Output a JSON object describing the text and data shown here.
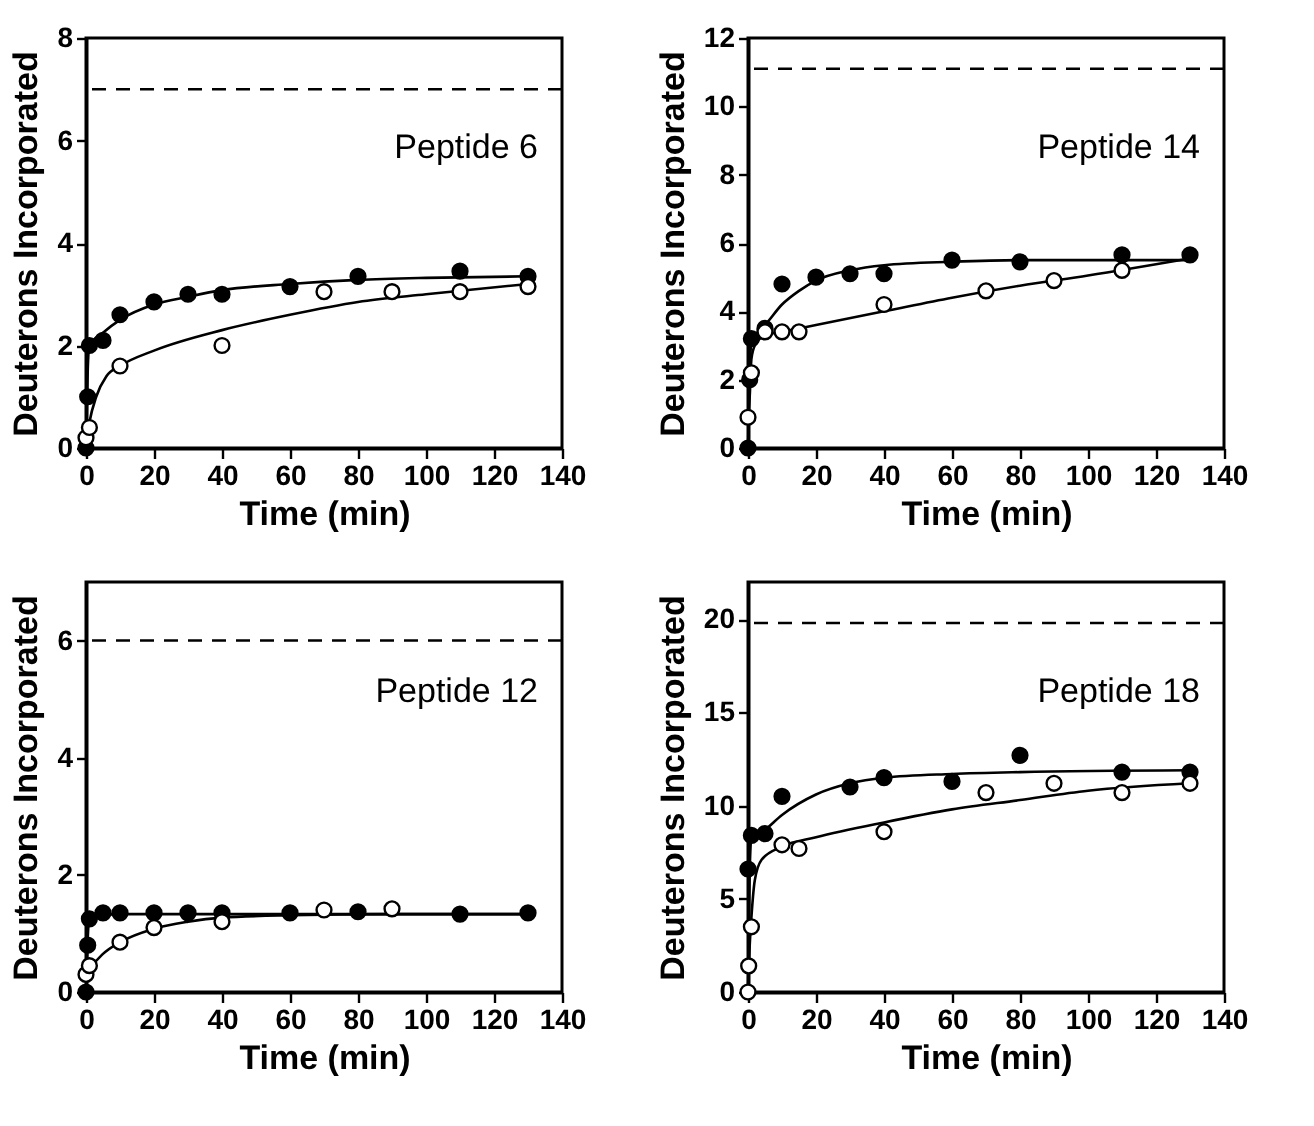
{
  "chart_data": [
    {
      "type": "scatter",
      "marker": "circle",
      "grid": false,
      "xlabel": "Time (min)",
      "ylabel": "Deuterons Incorporated",
      "annotations": [
        "Peptide 6"
      ],
      "xlim": [
        0,
        140
      ],
      "xticks": [
        0,
        20,
        40,
        60,
        80,
        100,
        120,
        140
      ],
      "ylim": [
        0,
        8
      ],
      "yticks": [
        0,
        2,
        4,
        6,
        8
      ],
      "ref_lines": [
        {
          "axis": "y",
          "value": 7,
          "line_style": "dashed",
          "color": "#000000"
        }
      ],
      "series": [
        {
          "type": "line",
          "color": "#000000",
          "marker": "none",
          "x": [
            0,
            0.5,
            1,
            5,
            10,
            20,
            30,
            40,
            60,
            80,
            100,
            130
          ],
          "values": [
            0,
            1.5,
            2.0,
            2.25,
            2.5,
            2.8,
            2.95,
            3.08,
            3.2,
            3.28,
            3.32,
            3.35
          ]
        },
        {
          "type": "line",
          "color": "#000000",
          "marker": "none",
          "x": [
            0,
            0.5,
            1,
            3,
            6,
            10,
            20,
            40,
            60,
            80,
            100,
            130
          ],
          "values": [
            0,
            0.3,
            0.5,
            1.0,
            1.4,
            1.6,
            1.9,
            2.3,
            2.6,
            2.85,
            3.0,
            3.2
          ]
        },
        {
          "color": "#000000",
          "x": [
            0,
            0.5,
            1,
            5,
            10,
            20,
            30,
            40,
            60,
            80,
            110,
            130
          ],
          "values": [
            0,
            1.0,
            2.0,
            2.1,
            2.6,
            2.85,
            3.0,
            3.0,
            3.15,
            3.35,
            3.45,
            3.35
          ]
        },
        {
          "color": "#ffffff",
          "x": [
            0,
            1,
            10,
            40,
            70,
            90,
            110,
            130
          ],
          "values": [
            0.2,
            0.4,
            1.6,
            2.0,
            3.05,
            3.05,
            3.05,
            3.15
          ]
        }
      ]
    },
    {
      "type": "scatter",
      "marker": "circle",
      "grid": false,
      "xlabel": "Time (min)",
      "ylabel": "Deuterons Incorporated",
      "annotations": [
        "Peptide 14"
      ],
      "xlim": [
        0,
        140
      ],
      "xticks": [
        0,
        20,
        40,
        60,
        80,
        100,
        120,
        140
      ],
      "ylim": [
        0,
        12
      ],
      "yticks": [
        0,
        2,
        4,
        6,
        8,
        10,
        12
      ],
      "ref_lines": [
        {
          "axis": "y",
          "value": 11.1,
          "line_style": "dashed",
          "color": "#000000"
        }
      ],
      "series": [
        {
          "type": "line",
          "color": "#000000",
          "marker": "none",
          "x": [
            0,
            0.5,
            1,
            3,
            5,
            10,
            15,
            20,
            30,
            40,
            60,
            80,
            130
          ],
          "values": [
            0,
            2.2,
            3.1,
            3.4,
            3.6,
            4.2,
            4.6,
            4.9,
            5.2,
            5.35,
            5.45,
            5.5,
            5.5
          ]
        },
        {
          "type": "line",
          "color": "#000000",
          "marker": "none",
          "x": [
            0,
            0.5,
            1,
            2,
            5,
            10,
            20,
            40,
            60,
            80,
            100,
            130
          ],
          "values": [
            0.8,
            1.5,
            2.6,
            3.0,
            3.3,
            3.4,
            3.6,
            4.0,
            4.4,
            4.75,
            5.05,
            5.55
          ]
        },
        {
          "color": "#000000",
          "x": [
            0,
            0.5,
            1,
            5,
            10,
            20,
            30,
            40,
            60,
            80,
            110,
            130
          ],
          "values": [
            0,
            2.0,
            3.2,
            3.5,
            4.8,
            5.0,
            5.1,
            5.1,
            5.5,
            5.45,
            5.65,
            5.65
          ]
        },
        {
          "color": "#ffffff",
          "x": [
            0,
            1,
            5,
            10,
            15,
            40,
            70,
            90,
            110
          ],
          "values": [
            0.9,
            2.2,
            3.4,
            3.4,
            3.4,
            4.2,
            4.6,
            4.9,
            5.2
          ]
        }
      ]
    },
    {
      "type": "scatter",
      "marker": "circle",
      "grid": false,
      "xlabel": "Time (min)",
      "ylabel": "Deuterons Incorporated",
      "annotations": [
        "Peptide 12"
      ],
      "xlim": [
        0,
        140
      ],
      "xticks": [
        0,
        20,
        40,
        60,
        80,
        100,
        120,
        140
      ],
      "ylim": [
        0,
        7
      ],
      "yticks": [
        0,
        2,
        4,
        6
      ],
      "ref_lines": [
        {
          "axis": "y",
          "value": 6,
          "line_style": "dashed",
          "color": "#000000"
        }
      ],
      "series": [
        {
          "type": "line",
          "color": "#000000",
          "marker": "none",
          "x": [
            0,
            0.5,
            1,
            10,
            40,
            130
          ],
          "values": [
            0,
            0.9,
            1.3,
            1.33,
            1.33,
            1.33
          ]
        },
        {
          "type": "line",
          "color": "#000000",
          "marker": "none",
          "x": [
            0,
            2,
            5,
            10,
            20,
            30,
            40,
            60,
            90,
            130
          ],
          "values": [
            0.2,
            0.45,
            0.65,
            0.85,
            1.08,
            1.2,
            1.27,
            1.31,
            1.33,
            1.33
          ]
        },
        {
          "color": "#000000",
          "x": [
            0,
            0.5,
            1,
            5,
            10,
            20,
            30,
            40,
            60,
            80,
            110,
            130
          ],
          "values": [
            0,
            0.8,
            1.25,
            1.35,
            1.35,
            1.35,
            1.35,
            1.35,
            1.35,
            1.37,
            1.33,
            1.35
          ]
        },
        {
          "color": "#ffffff",
          "x": [
            0,
            1,
            10,
            20,
            40,
            70,
            90
          ],
          "values": [
            0.3,
            0.45,
            0.85,
            1.1,
            1.2,
            1.4,
            1.42
          ]
        }
      ]
    },
    {
      "type": "scatter",
      "marker": "circle",
      "grid": false,
      "xlabel": "Time (min)",
      "ylabel": "Deuterons Incorporated",
      "annotations": [
        "Peptide 18"
      ],
      "xlim": [
        0,
        140
      ],
      "xticks": [
        0,
        20,
        40,
        60,
        80,
        100,
        120,
        140
      ],
      "ylim": [
        0,
        22
      ],
      "yticks": [
        0,
        5,
        10,
        15,
        20
      ],
      "ref_lines": [
        {
          "axis": "y",
          "value": 19.8,
          "line_style": "dashed",
          "color": "#000000"
        }
      ],
      "series": [
        {
          "type": "line",
          "color": "#000000",
          "marker": "none",
          "x": [
            0,
            0.5,
            1,
            5,
            10,
            20,
            30,
            40,
            60,
            80,
            130
          ],
          "values": [
            0,
            6.5,
            8.2,
            8.7,
            9.5,
            10.6,
            11.2,
            11.5,
            11.7,
            11.8,
            11.9
          ]
        },
        {
          "type": "line",
          "color": "#000000",
          "marker": "none",
          "x": [
            0,
            0.5,
            1,
            2,
            4,
            10,
            20,
            40,
            60,
            80,
            100,
            130
          ],
          "values": [
            0,
            2.5,
            4.0,
            6.0,
            7.1,
            7.8,
            8.3,
            9.1,
            9.8,
            10.3,
            10.8,
            11.2
          ]
        },
        {
          "color": "#000000",
          "x": [
            0,
            1,
            5,
            10,
            30,
            40,
            60,
            80,
            110,
            130
          ],
          "values": [
            6.6,
            8.4,
            8.5,
            10.5,
            11.0,
            11.5,
            11.3,
            12.7,
            11.8,
            11.8
          ]
        },
        {
          "color": "#ffffff",
          "x": [
            0,
            0.2,
            1,
            10,
            15,
            40,
            70,
            90,
            110,
            130
          ],
          "values": [
            0,
            1.4,
            3.5,
            7.9,
            7.7,
            8.6,
            10.7,
            11.2,
            10.7,
            11.2
          ]
        }
      ]
    }
  ]
}
